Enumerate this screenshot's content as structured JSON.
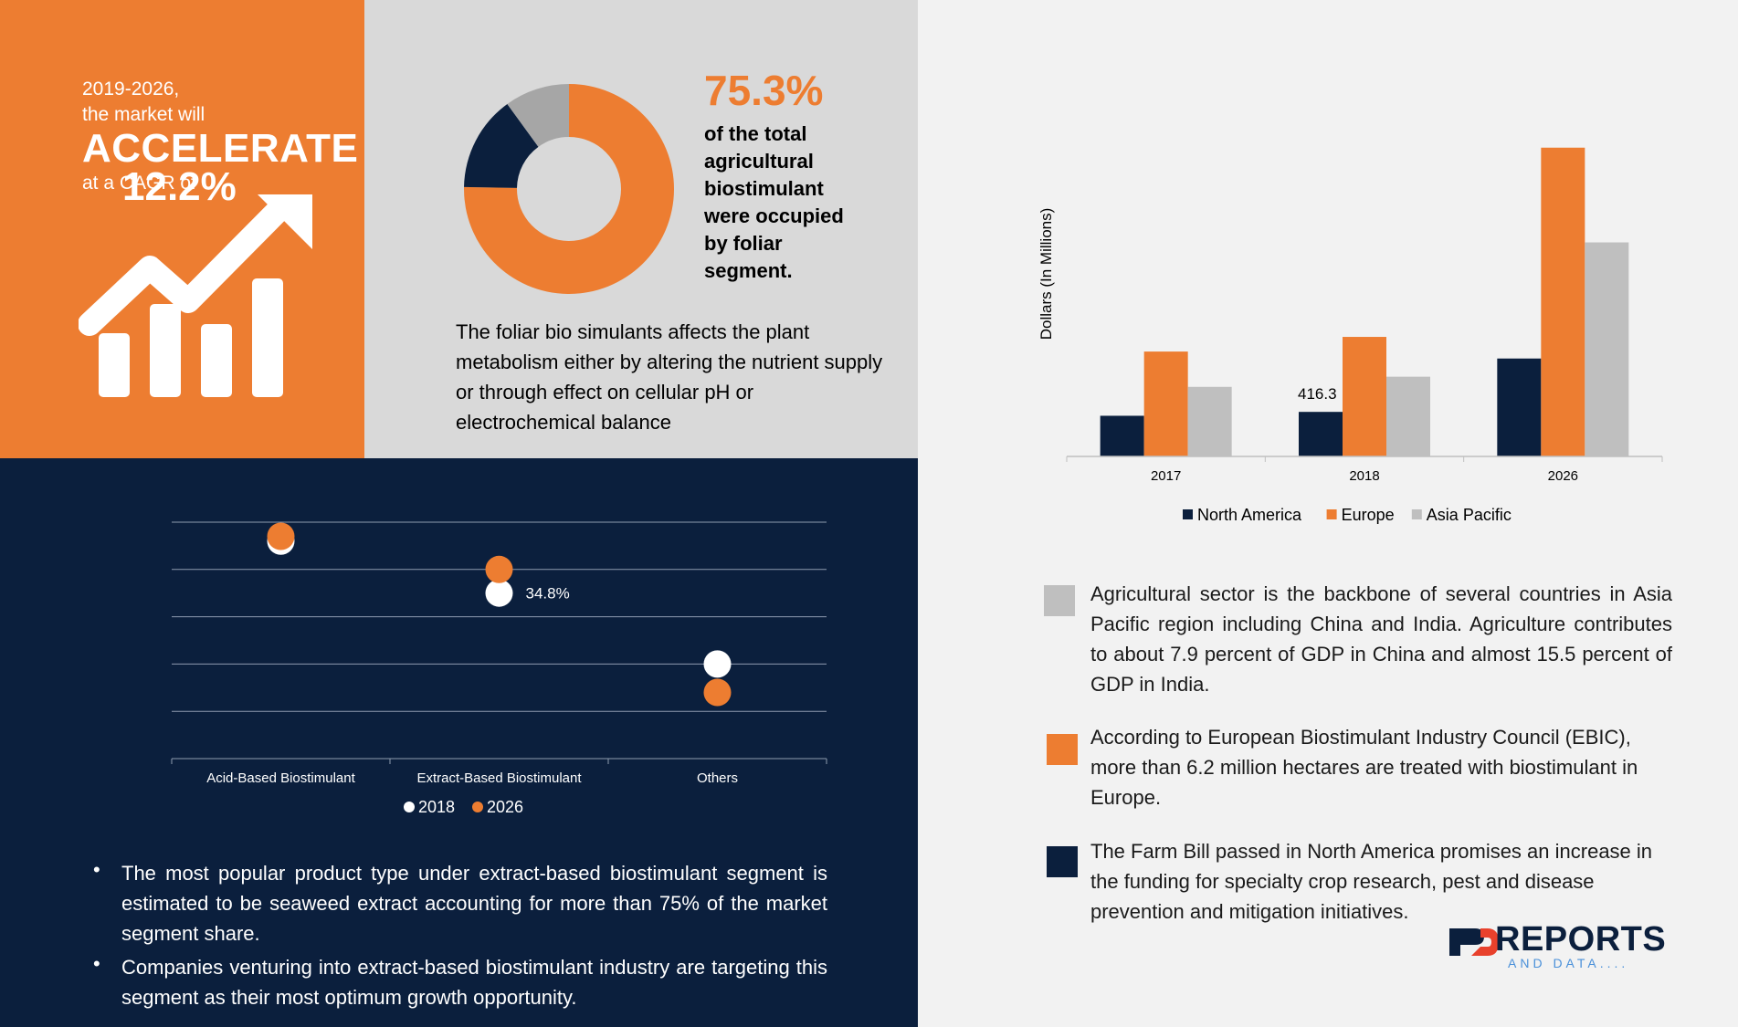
{
  "colors": {
    "orange": "#ed7d31",
    "navy": "#0b1f3d",
    "gray": "#bfbfbf",
    "white": "#ffffff"
  },
  "headline": {
    "years_text": "2019-2026,",
    "market_text": "the market will",
    "accelerate": "ACCELERATE",
    "cagr_prefix": "at a CAGR of",
    "cagr_value": "12.2%",
    "icon": "growth-chart-arrow-icon"
  },
  "foliar": {
    "percent": "75.3%",
    "caption": "of the total agricultural biostimulant were occupied by foliar segment.",
    "description": "The foliar bio simulants affects the plant metabolism either by altering the nutrient supply or through effect on cellular pH or electrochemical balance"
  },
  "bullets": [
    "The most popular product type under  extract-based biostimulant  segment is estimated to be seaweed extract accounting for more than 75% of the market segment share.",
    "Companies venturing into extract-based biostimulant industry are targeting this segment as their most optimum growth opportunity."
  ],
  "info_items": [
    {
      "color": "#bfbfbf",
      "text": "Agricultural sector is the backbone of several countries in Asia Pacific region including China and India. Agriculture contributes to about 7.9 percent of GDP in China and almost 15.5 percent of GDP in India."
    },
    {
      "color": "#ed7d31",
      "text": "According to European Biostimulant Industry Council (EBIC), more than 6.2 million hectares are treated with biostimulant in Europe."
    },
    {
      "color": "#0b1f3d",
      "text": "The Farm Bill passed in North America promises an increase in the funding for specialty crop research, pest and disease prevention and mitigation initiatives."
    }
  ],
  "logo": {
    "main": "REPORTS",
    "sub": "AND DATA...."
  },
  "chart_data": [
    {
      "type": "pie",
      "variant": "donut",
      "title": "",
      "slices": [
        {
          "value": 75.3,
          "color": "#ed7d31"
        },
        {
          "value": 14.7,
          "color": "#0b1f3d"
        },
        {
          "value": 10.0,
          "color": "#a6a6a6"
        }
      ]
    },
    {
      "type": "scatter",
      "title": "",
      "categories": [
        "Acid-Based Biostimulant",
        "Extract-Based Biostimulant",
        "Others"
      ],
      "ylim": [
        0,
        50
      ],
      "grid": true,
      "legend": "bottom",
      "series": [
        {
          "name": "2018",
          "color": "#ffffff",
          "values": [
            46,
            35,
            20
          ]
        },
        {
          "name": "2026",
          "color": "#ed7d31",
          "values": [
            47,
            40,
            14
          ]
        }
      ],
      "annotations": [
        {
          "series": "2018",
          "category": "Extract-Based Biostimulant",
          "text": "34.8%"
        }
      ]
    },
    {
      "type": "bar",
      "title": "",
      "xlabel": "",
      "ylabel": "Dollars (In Millions)",
      "categories": [
        "2017",
        "2018",
        "2026"
      ],
      "ylim": [
        0,
        2900
      ],
      "grid": false,
      "legend": "bottom",
      "series": [
        {
          "name": "North America",
          "color": "#0b1f3d",
          "values": [
            380,
            416.3,
            915
          ]
        },
        {
          "name": "Europe",
          "color": "#ed7d31",
          "values": [
            980,
            1117,
            2885
          ]
        },
        {
          "name": "Asia Pacific",
          "color": "#bfbfbf",
          "values": [
            650,
            745,
            2000
          ]
        }
      ],
      "data_labels": [
        {
          "series": "North America",
          "category": "2018",
          "text": "416.3"
        }
      ]
    }
  ]
}
